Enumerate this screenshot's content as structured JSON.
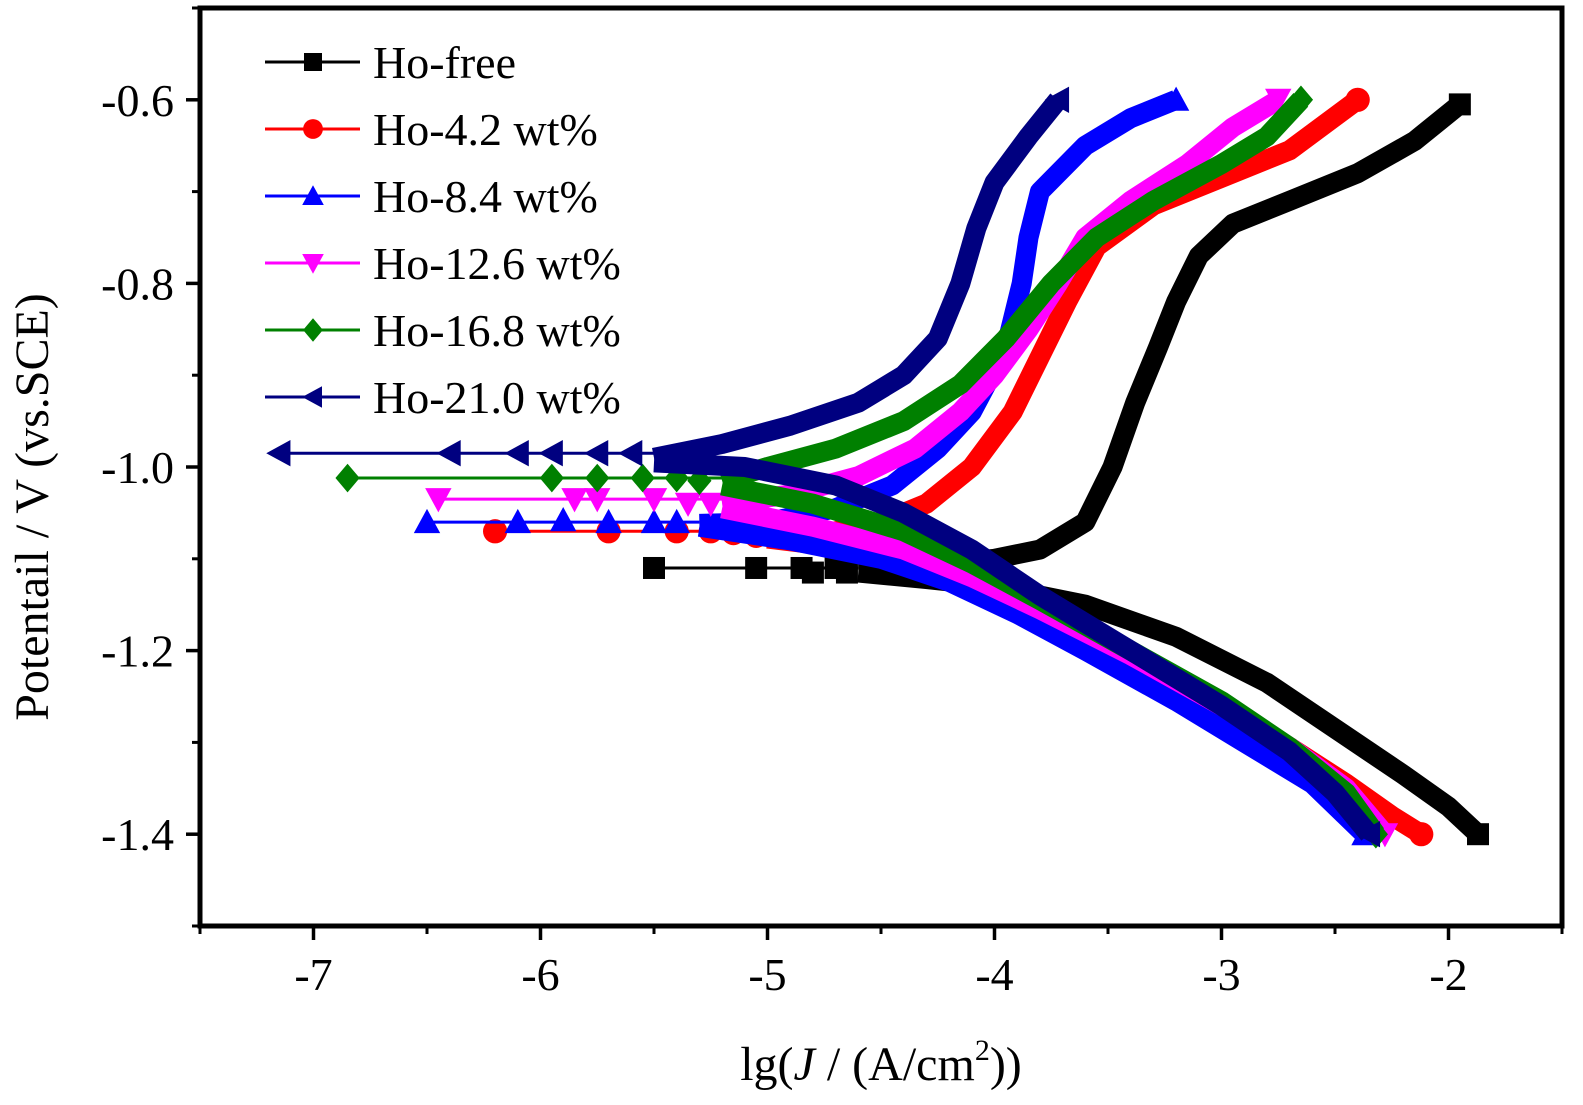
{
  "chart_data": {
    "type": "line",
    "xlabel_prefix": "lg(",
    "xlabel_var": "J",
    "xlabel_mid": " / (A/cm",
    "xlabel_sup": "2",
    "xlabel_suffix": "))",
    "ylabel": "Potentail / V (vs.SCE)",
    "xlim": [
      -7.5,
      -1.5
    ],
    "ylim": [
      -1.5,
      -0.5
    ],
    "x_ticks": [
      -7,
      -6,
      -5,
      -4,
      -3,
      -2
    ],
    "x_tick_labels": [
      "-7",
      "-6",
      "-5",
      "-4",
      "-3",
      "-2"
    ],
    "y_ticks": [
      -1.4,
      -1.2,
      -1.0,
      -0.8,
      -0.6
    ],
    "y_tick_labels": [
      "-1.4",
      "-1.2",
      "-1.0",
      "-0.8",
      "-0.6"
    ],
    "legend_position": "top-left",
    "series": [
      {
        "name": "Ho-free",
        "color": "#000000",
        "marker": "square",
        "ecorr": -1.11,
        "isolated_points": [
          [
            -5.5,
            -1.11
          ],
          [
            -5.05,
            -1.11
          ],
          [
            -4.85,
            -1.11
          ],
          [
            -4.8,
            -1.115
          ],
          [
            -4.7,
            -1.11
          ],
          [
            -4.65,
            -1.115
          ]
        ],
        "anodic": [
          [
            -4.6,
            -1.112
          ],
          [
            -4.4,
            -1.11
          ],
          [
            -4.2,
            -1.105
          ],
          [
            -4.0,
            -1.1
          ],
          [
            -3.8,
            -1.09
          ],
          [
            -3.6,
            -1.06
          ],
          [
            -3.48,
            -1.0
          ],
          [
            -3.38,
            -0.93
          ],
          [
            -3.28,
            -0.87
          ],
          [
            -3.2,
            -0.82
          ],
          [
            -3.1,
            -0.77
          ],
          [
            -2.95,
            -0.735
          ],
          [
            -2.7,
            -0.71
          ],
          [
            -2.4,
            -0.68
          ],
          [
            -2.15,
            -0.645
          ],
          [
            -1.95,
            -0.605
          ]
        ],
        "cathodic": [
          [
            -4.6,
            -1.115
          ],
          [
            -4.3,
            -1.122
          ],
          [
            -4.0,
            -1.13
          ],
          [
            -3.6,
            -1.15
          ],
          [
            -3.2,
            -1.185
          ],
          [
            -2.8,
            -1.235
          ],
          [
            -2.5,
            -1.285
          ],
          [
            -2.2,
            -1.335
          ],
          [
            -2.0,
            -1.37
          ],
          [
            -1.87,
            -1.4
          ]
        ]
      },
      {
        "name": "Ho-4.2 wt%",
        "color": "#ff0000",
        "marker": "circle",
        "ecorr": -1.07,
        "isolated_points": [
          [
            -6.2,
            -1.07
          ],
          [
            -5.7,
            -1.07
          ],
          [
            -5.4,
            -1.07
          ],
          [
            -5.25,
            -1.07
          ],
          [
            -5.15,
            -1.072
          ],
          [
            -5.05,
            -1.075
          ]
        ],
        "anodic": [
          [
            -5.0,
            -1.075
          ],
          [
            -4.7,
            -1.07
          ],
          [
            -4.5,
            -1.06
          ],
          [
            -4.3,
            -1.04
          ],
          [
            -4.1,
            -1.0
          ],
          [
            -3.92,
            -0.94
          ],
          [
            -3.8,
            -0.88
          ],
          [
            -3.68,
            -0.82
          ],
          [
            -3.55,
            -0.76
          ],
          [
            -3.3,
            -0.715
          ],
          [
            -3.0,
            -0.685
          ],
          [
            -2.7,
            -0.655
          ],
          [
            -2.4,
            -0.6
          ]
        ],
        "cathodic": [
          [
            -5.0,
            -1.078
          ],
          [
            -4.6,
            -1.09
          ],
          [
            -4.2,
            -1.11
          ],
          [
            -3.9,
            -1.14
          ],
          [
            -3.6,
            -1.175
          ],
          [
            -3.3,
            -1.215
          ],
          [
            -3.0,
            -1.26
          ],
          [
            -2.7,
            -1.305
          ],
          [
            -2.45,
            -1.345
          ],
          [
            -2.25,
            -1.38
          ],
          [
            -2.12,
            -1.4
          ]
        ]
      },
      {
        "name": "Ho-8.4 wt%",
        "color": "#0000ff",
        "marker": "triangle-up",
        "ecorr": -1.06,
        "isolated_points": [
          [
            -6.5,
            -1.06
          ],
          [
            -6.1,
            -1.06
          ],
          [
            -5.9,
            -1.058
          ],
          [
            -5.7,
            -1.06
          ],
          [
            -5.5,
            -1.06
          ],
          [
            -5.4,
            -1.06
          ]
        ],
        "anodic": [
          [
            -5.3,
            -1.062
          ],
          [
            -5.0,
            -1.06
          ],
          [
            -4.7,
            -1.045
          ],
          [
            -4.45,
            -1.02
          ],
          [
            -4.25,
            -0.98
          ],
          [
            -4.1,
            -0.94
          ],
          [
            -3.95,
            -0.87
          ],
          [
            -3.88,
            -0.8
          ],
          [
            -3.85,
            -0.75
          ],
          [
            -3.8,
            -0.7
          ],
          [
            -3.6,
            -0.65
          ],
          [
            -3.4,
            -0.62
          ],
          [
            -3.2,
            -0.6
          ]
        ],
        "cathodic": [
          [
            -5.3,
            -1.065
          ],
          [
            -4.9,
            -1.08
          ],
          [
            -4.5,
            -1.1
          ],
          [
            -4.2,
            -1.125
          ],
          [
            -3.9,
            -1.16
          ],
          [
            -3.6,
            -1.2
          ],
          [
            -3.2,
            -1.255
          ],
          [
            -2.9,
            -1.3
          ],
          [
            -2.6,
            -1.345
          ],
          [
            -2.37,
            -1.4
          ]
        ]
      },
      {
        "name": "Ho-12.6 wt%",
        "color": "#ff00ff",
        "marker": "triangle-down",
        "ecorr": -1.035,
        "isolated_points": [
          [
            -6.45,
            -1.035
          ],
          [
            -5.85,
            -1.035
          ],
          [
            -5.75,
            -1.035
          ],
          [
            -5.5,
            -1.035
          ],
          [
            -5.35,
            -1.04
          ],
          [
            -5.25,
            -1.04
          ]
        ],
        "anodic": [
          [
            -5.2,
            -1.04
          ],
          [
            -4.9,
            -1.03
          ],
          [
            -4.6,
            -1.01
          ],
          [
            -4.35,
            -0.98
          ],
          [
            -4.15,
            -0.94
          ],
          [
            -4.0,
            -0.9
          ],
          [
            -3.85,
            -0.85
          ],
          [
            -3.72,
            -0.8
          ],
          [
            -3.6,
            -0.75
          ],
          [
            -3.4,
            -0.71
          ],
          [
            -3.15,
            -0.67
          ],
          [
            -2.95,
            -0.63
          ],
          [
            -2.75,
            -0.6
          ]
        ],
        "cathodic": [
          [
            -5.2,
            -1.045
          ],
          [
            -4.8,
            -1.065
          ],
          [
            -4.4,
            -1.09
          ],
          [
            -4.1,
            -1.12
          ],
          [
            -3.8,
            -1.155
          ],
          [
            -3.4,
            -1.205
          ],
          [
            -3.0,
            -1.26
          ],
          [
            -2.7,
            -1.305
          ],
          [
            -2.45,
            -1.35
          ],
          [
            -2.28,
            -1.4
          ]
        ]
      },
      {
        "name": "Ho-16.8 wt%",
        "color": "#008000",
        "marker": "diamond",
        "ecorr": -1.012,
        "isolated_points": [
          [
            -6.85,
            -1.012
          ],
          [
            -5.95,
            -1.012
          ],
          [
            -5.75,
            -1.012
          ],
          [
            -5.55,
            -1.012
          ],
          [
            -5.4,
            -1.012
          ],
          [
            -5.3,
            -1.015
          ]
        ],
        "anodic": [
          [
            -5.2,
            -1.015
          ],
          [
            -5.0,
            -1.0
          ],
          [
            -4.7,
            -0.98
          ],
          [
            -4.4,
            -0.95
          ],
          [
            -4.15,
            -0.91
          ],
          [
            -3.95,
            -0.86
          ],
          [
            -3.75,
            -0.8
          ],
          [
            -3.55,
            -0.75
          ],
          [
            -3.3,
            -0.71
          ],
          [
            -3.0,
            -0.67
          ],
          [
            -2.8,
            -0.64
          ],
          [
            -2.65,
            -0.6
          ]
        ],
        "cathodic": [
          [
            -5.2,
            -1.02
          ],
          [
            -4.8,
            -1.04
          ],
          [
            -4.4,
            -1.07
          ],
          [
            -4.1,
            -1.105
          ],
          [
            -3.8,
            -1.145
          ],
          [
            -3.4,
            -1.2
          ],
          [
            -3.0,
            -1.255
          ],
          [
            -2.7,
            -1.305
          ],
          [
            -2.45,
            -1.355
          ],
          [
            -2.32,
            -1.4
          ]
        ]
      },
      {
        "name": "Ho-21.0 wt%",
        "color": "#000080",
        "marker": "triangle-left",
        "ecorr": -0.985,
        "isolated_points": [
          [
            -7.15,
            -0.985
          ],
          [
            -6.4,
            -0.985
          ],
          [
            -6.1,
            -0.985
          ],
          [
            -5.95,
            -0.985
          ],
          [
            -5.75,
            -0.985
          ],
          [
            -5.6,
            -0.985
          ]
        ],
        "anodic": [
          [
            -5.5,
            -0.99
          ],
          [
            -5.2,
            -0.975
          ],
          [
            -4.9,
            -0.955
          ],
          [
            -4.6,
            -0.93
          ],
          [
            -4.4,
            -0.9
          ],
          [
            -4.25,
            -0.86
          ],
          [
            -4.15,
            -0.8
          ],
          [
            -4.08,
            -0.74
          ],
          [
            -4.0,
            -0.69
          ],
          [
            -3.85,
            -0.64
          ],
          [
            -3.72,
            -0.6
          ]
        ],
        "cathodic": [
          [
            -5.5,
            -0.995
          ],
          [
            -5.1,
            -1.0
          ],
          [
            -4.7,
            -1.02
          ],
          [
            -4.4,
            -1.05
          ],
          [
            -4.1,
            -1.09
          ],
          [
            -3.8,
            -1.14
          ],
          [
            -3.4,
            -1.2
          ],
          [
            -3.0,
            -1.26
          ],
          [
            -2.7,
            -1.31
          ],
          [
            -2.5,
            -1.355
          ],
          [
            -2.35,
            -1.4
          ]
        ]
      }
    ]
  }
}
